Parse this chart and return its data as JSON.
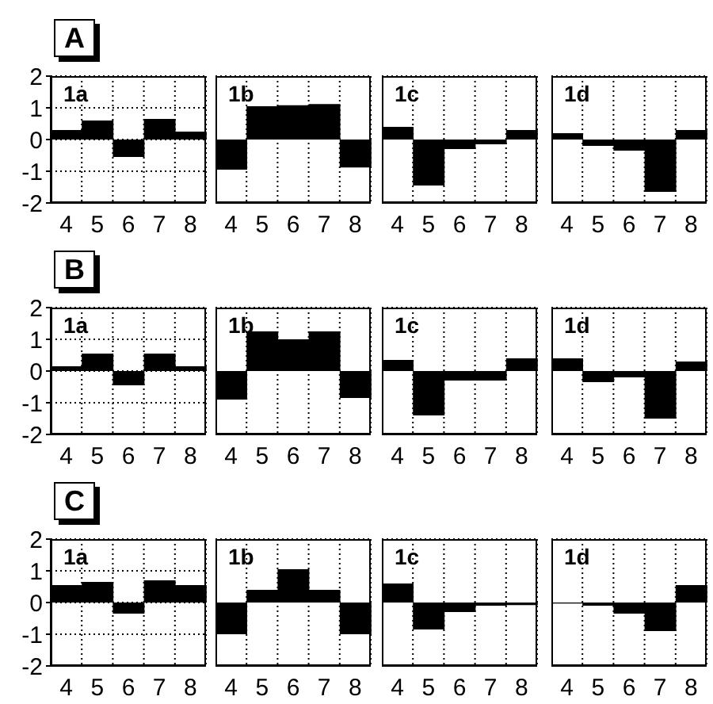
{
  "chart_data": [
    {
      "type": "bar",
      "subtitle": "A",
      "title": "1a",
      "categories": [
        "4",
        "5",
        "6",
        "7",
        "8"
      ],
      "values": [
        0.3,
        0.6,
        -0.55,
        0.65,
        0.25
      ],
      "color": "#000000",
      "ylim": [
        -2,
        2
      ],
      "yticks": [
        -2,
        -1,
        0,
        1,
        2
      ],
      "grid": true
    },
    {
      "type": "bar",
      "title": "1b",
      "categories": [
        "4",
        "5",
        "6",
        "7",
        "8"
      ],
      "values": [
        -0.95,
        1.05,
        1.08,
        1.12,
        -0.88
      ],
      "color": "#000000",
      "ylim": [
        -2,
        2
      ],
      "yticks": [
        -2,
        -1,
        0,
        1,
        2
      ],
      "grid": true,
      "tick_labels": "x"
    },
    {
      "type": "bar",
      "title": "1c",
      "categories": [
        "4",
        "5",
        "6",
        "7",
        "8"
      ],
      "values": [
        0.4,
        -1.45,
        -0.3,
        -0.15,
        0.3
      ],
      "color": "#000000",
      "ylim": [
        -2,
        2
      ],
      "yticks": [
        -2,
        -1,
        0,
        1,
        2
      ],
      "grid": true,
      "tick_labels": "x"
    },
    {
      "type": "bar",
      "title": "1d",
      "categories": [
        "4",
        "5",
        "6",
        "7",
        "8"
      ],
      "values": [
        0.2,
        -0.2,
        -0.35,
        -1.65,
        0.3
      ],
      "color": "#000000",
      "ylim": [
        -2,
        2
      ],
      "yticks": [
        -2,
        -1,
        0,
        1,
        2
      ],
      "grid": true,
      "tick_labels": "x"
    },
    {
      "type": "bar",
      "subtitle": "B",
      "title": "1a",
      "categories": [
        "4",
        "5",
        "6",
        "7",
        "8"
      ],
      "values": [
        0.15,
        0.55,
        -0.45,
        0.55,
        0.15
      ],
      "color": "#000000",
      "ylim": [
        -2,
        2
      ],
      "yticks": [
        -2,
        -1,
        0,
        1,
        2
      ],
      "grid": true
    },
    {
      "type": "bar",
      "title": "1b",
      "categories": [
        "4",
        "5",
        "6",
        "7",
        "8"
      ],
      "values": [
        -0.9,
        1.25,
        1.0,
        1.25,
        -0.85
      ],
      "color": "#000000",
      "ylim": [
        -2,
        2
      ],
      "yticks": [
        -2,
        -1,
        0,
        1,
        2
      ],
      "grid": true,
      "tick_labels": "x"
    },
    {
      "type": "bar",
      "title": "1c",
      "categories": [
        "4",
        "5",
        "6",
        "7",
        "8"
      ],
      "values": [
        0.35,
        -1.4,
        -0.3,
        -0.3,
        0.4
      ],
      "color": "#000000",
      "ylim": [
        -2,
        2
      ],
      "yticks": [
        -2,
        -1,
        0,
        1,
        2
      ],
      "grid": true,
      "tick_labels": "x"
    },
    {
      "type": "bar",
      "title": "1d",
      "categories": [
        "4",
        "5",
        "6",
        "7",
        "8"
      ],
      "values": [
        0.4,
        -0.35,
        -0.2,
        -1.5,
        0.3
      ],
      "color": "#000000",
      "ylim": [
        -2,
        2
      ],
      "yticks": [
        -2,
        -1,
        0,
        1,
        2
      ],
      "grid": true,
      "tick_labels": "x"
    },
    {
      "type": "bar",
      "subtitle": "C",
      "title": "1a",
      "categories": [
        "4",
        "5",
        "6",
        "7",
        "8"
      ],
      "values": [
        0.55,
        0.65,
        -0.35,
        0.7,
        0.55
      ],
      "color": "#000000",
      "ylim": [
        -2,
        2
      ],
      "yticks": [
        -2,
        -1,
        0,
        1,
        2
      ],
      "grid": true
    },
    {
      "type": "bar",
      "title": "1b",
      "categories": [
        "4",
        "5",
        "6",
        "7",
        "8"
      ],
      "values": [
        -1.0,
        0.4,
        1.05,
        0.4,
        -1.0
      ],
      "color": "#000000",
      "ylim": [
        -2,
        2
      ],
      "yticks": [
        -2,
        -1,
        0,
        1,
        2
      ],
      "grid": true,
      "tick_labels": "x"
    },
    {
      "type": "bar",
      "title": "1c",
      "categories": [
        "4",
        "5",
        "6",
        "7",
        "8"
      ],
      "values": [
        0.6,
        -0.85,
        -0.3,
        -0.1,
        -0.08
      ],
      "color": "#000000",
      "ylim": [
        -2,
        2
      ],
      "yticks": [
        -2,
        -1,
        0,
        1,
        2
      ],
      "grid": true,
      "tick_labels": "x"
    },
    {
      "type": "bar",
      "title": "1d",
      "categories": [
        "4",
        "5",
        "6",
        "7",
        "8"
      ],
      "values": [
        -0.03,
        -0.1,
        -0.35,
        -0.9,
        0.55
      ],
      "color": "#000000",
      "ylim": [
        -2,
        2
      ],
      "yticks": [
        -2,
        -1,
        0,
        1,
        2
      ],
      "grid": true,
      "tick_labels": "x"
    }
  ]
}
